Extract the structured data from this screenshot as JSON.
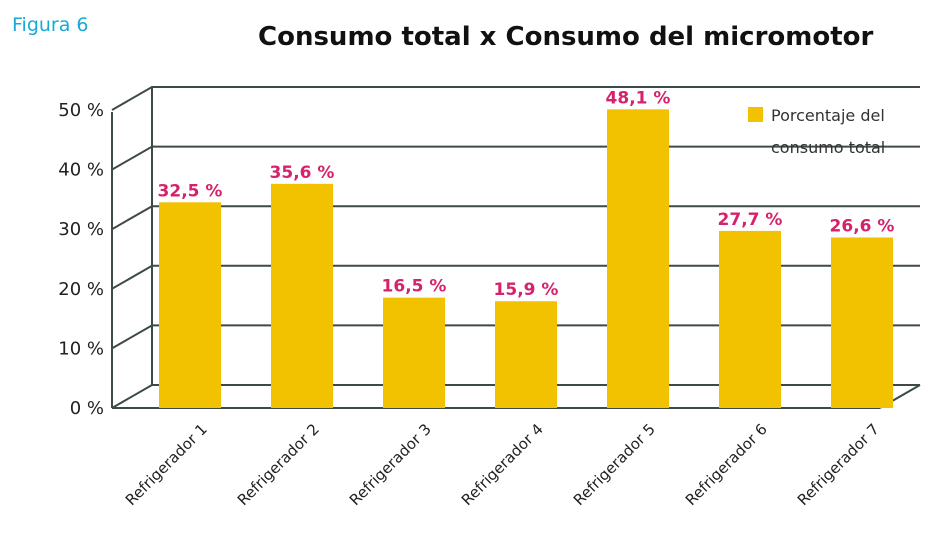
{
  "figure_label": "Figura 6",
  "chart_data": {
    "type": "bar",
    "title": "Consumo total x Consumo del micromotor",
    "xlabel": "",
    "ylabel": "",
    "categories": [
      "Refrigerador 1",
      "Refrigerador 2",
      "Refrigerador 3",
      "Refrigerador 4",
      "Refrigerador 5",
      "Refrigerador 6",
      "Refrigerador 7"
    ],
    "series": [
      {
        "name": "Porcentaje del consumo total",
        "values": [
          32.5,
          35.6,
          16.5,
          15.9,
          48.1,
          27.7,
          26.6
        ],
        "labels": [
          "32,5 %",
          "35,6 %",
          "16,5 %",
          "15,9 %",
          "48,1 %",
          "27,7 %",
          "26,6 %"
        ]
      }
    ],
    "yticks": [
      0,
      10,
      20,
      30,
      40,
      50
    ],
    "ytick_labels": [
      "0 %",
      "10 %",
      "20 %",
      "30 %",
      "40 %",
      "50 %"
    ],
    "ylim": [
      0,
      50
    ],
    "grid": true,
    "legend_position": "top-right",
    "colors": {
      "bar": "#f2c200",
      "data_label": "#d6226b",
      "figure_label": "#19a9d6",
      "grid": "#3d4a47"
    }
  }
}
